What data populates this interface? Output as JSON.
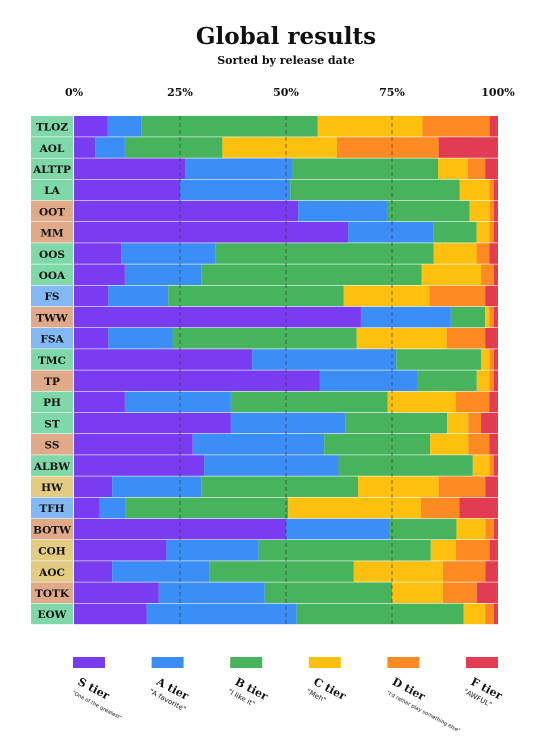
{
  "chart_data": {
    "type": "bar",
    "orientation": "horizontal",
    "stacked": true,
    "normalized": true,
    "title": "Global results",
    "subtitle": "Sorted by release date",
    "xlim": [
      0,
      100
    ],
    "x_ticks": [
      "0%",
      "25%",
      "50%",
      "75%",
      "100%"
    ],
    "grid": true,
    "legend_position": "bottom",
    "categories": [
      "TLOZ",
      "AOL",
      "ALTTP",
      "LA",
      "OOT",
      "MM",
      "OOS",
      "OOA",
      "FS",
      "TWW",
      "FSA",
      "TMC",
      "TP",
      "PH",
      "ST",
      "SS",
      "ALBW",
      "HW",
      "TFH",
      "BOTW",
      "COH",
      "AOC",
      "TOTK",
      "EOW"
    ],
    "category_colors": [
      "#7ed8a8",
      "#7ed8a8",
      "#7ed8a8",
      "#7ed8a8",
      "#e0aa88",
      "#e0aa88",
      "#7ed8a8",
      "#7ed8a8",
      "#82b8f4",
      "#e0aa88",
      "#82b8f4",
      "#7ed8a8",
      "#e0aa88",
      "#7ed8a8",
      "#7ed8a8",
      "#e0aa88",
      "#7ed8a8",
      "#e3cb82",
      "#82b8f4",
      "#e0aa88",
      "#e3cb82",
      "#e3cb82",
      "#e0aa88",
      "#7ed8a8"
    ],
    "series": [
      {
        "name": "S tier",
        "color": "#7a3cf0",
        "values": [
          8,
          5,
          26,
          25,
          55,
          64,
          11,
          12,
          8,
          67,
          8,
          42,
          58,
          12,
          37,
          28,
          31,
          9,
          6,
          51,
          22,
          9,
          20,
          17
        ]
      },
      {
        "name": "A tier",
        "color": "#3a8ef5",
        "values": [
          8,
          7,
          25,
          26,
          22,
          20,
          22,
          18,
          14,
          21,
          15,
          34,
          23,
          25,
          27,
          31,
          32,
          21,
          6,
          25,
          22,
          23,
          25,
          35
        ]
      },
      {
        "name": "B tier",
        "color": "#47b35c",
        "values": [
          42,
          23,
          34,
          40,
          20,
          10,
          51,
          52,
          41,
          8,
          43,
          20,
          14,
          37,
          24,
          25,
          32,
          37,
          38,
          16,
          41,
          34,
          30,
          39
        ]
      },
      {
        "name": "C tier",
        "color": "#fdc00f",
        "values": [
          25,
          27,
          7,
          7,
          5,
          3,
          10,
          14,
          20,
          1,
          21,
          2,
          3,
          16,
          5,
          9,
          4,
          19,
          31,
          7,
          6,
          21,
          12,
          5
        ]
      },
      {
        "name": "D tier",
        "color": "#fd8a22",
        "values": [
          16,
          24,
          4,
          1,
          1,
          1,
          3,
          3,
          13,
          1,
          9,
          1,
          1,
          8,
          3,
          5,
          1,
          11,
          9,
          2,
          8,
          10,
          8,
          2
        ]
      },
      {
        "name": "F tier",
        "color": "#e13c52",
        "values": [
          2,
          14,
          3,
          1,
          1,
          1,
          2,
          1,
          3,
          1,
          3,
          1,
          1,
          2,
          4,
          2,
          1,
          3,
          9,
          1,
          2,
          3,
          5,
          1
        ]
      }
    ],
    "legend": [
      {
        "label": "S tier",
        "description": "\"One of the greatest\""
      },
      {
        "label": "A tier",
        "description": "\"A favorite\""
      },
      {
        "label": "B tier",
        "description": "\"I like it\""
      },
      {
        "label": "C tier",
        "description": "\"Meh\""
      },
      {
        "label": "D tier",
        "description": "\"I'd rather play something else\""
      },
      {
        "label": "F tier",
        "description": "\"AWFUL\""
      }
    ]
  }
}
